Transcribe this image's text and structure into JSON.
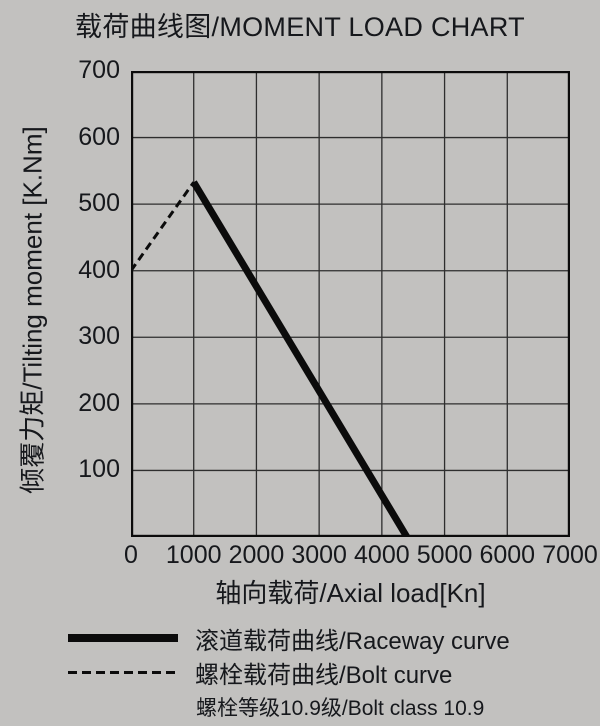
{
  "colors": {
    "background": "#c2c1bf",
    "line": "#0b0b0b",
    "grid": "#2e2e2e",
    "text": "#16181c"
  },
  "chart_data": {
    "type": "line",
    "title": "载荷曲线图/MOMENT LOAD CHART",
    "xlabel": "轴向载荷/Axial load[Kn]",
    "ylabel": "倾覆力矩/Tilting moment [K.Nm]",
    "xlim": [
      0,
      7000
    ],
    "ylim": [
      0,
      700
    ],
    "xticks": [
      0,
      1000,
      2000,
      3000,
      4000,
      5000,
      6000,
      7000
    ],
    "yticks": [
      100,
      200,
      300,
      400,
      500,
      600,
      700
    ],
    "grid": true,
    "legend_position": "bottom-left",
    "series": [
      {
        "name": "滚道载荷曲线/Raceway curve",
        "style": "solid-thick",
        "points": [
          [
            1000,
            533
          ],
          [
            4400,
            0
          ]
        ]
      },
      {
        "name": "螺栓载荷曲线/Bolt curve",
        "style": "dashed",
        "points": [
          [
            0,
            400
          ],
          [
            1000,
            533
          ]
        ]
      }
    ],
    "note": "螺栓等级10.9级/Bolt class 10.9"
  }
}
